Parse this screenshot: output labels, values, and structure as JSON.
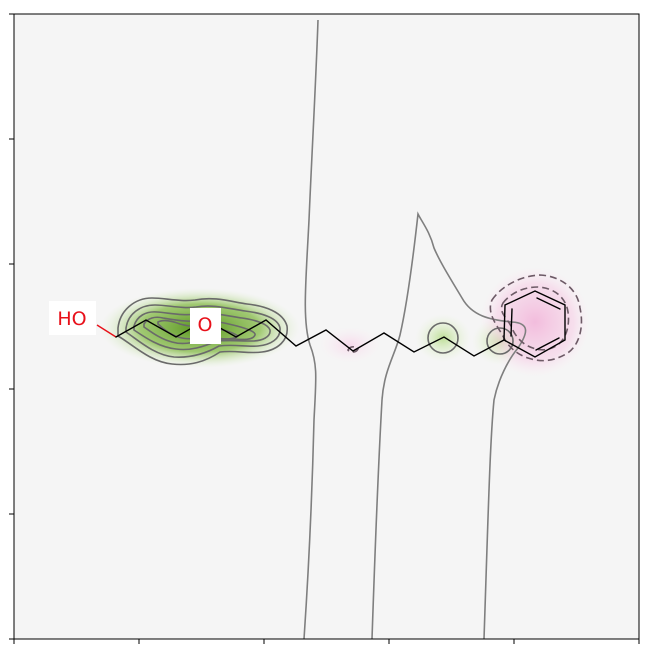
{
  "diagram": {
    "kind": "molecule similarity map",
    "atom_labels": {
      "hydroxyl": "HO",
      "ether_oxygen": "O"
    },
    "colors": {
      "background": "#f5f5f5",
      "positive": "#5a9a1a",
      "negative": "#e8a0cc",
      "contour": "#7f7f7f",
      "heteroatom": "#e8101a",
      "bond": "#000000"
    },
    "axes": {
      "x_ticks": [
        "",
        "",
        "",
        "",
        "",
        ""
      ],
      "y_ticks": [
        "",
        "",
        "",
        "",
        "",
        ""
      ]
    }
  }
}
